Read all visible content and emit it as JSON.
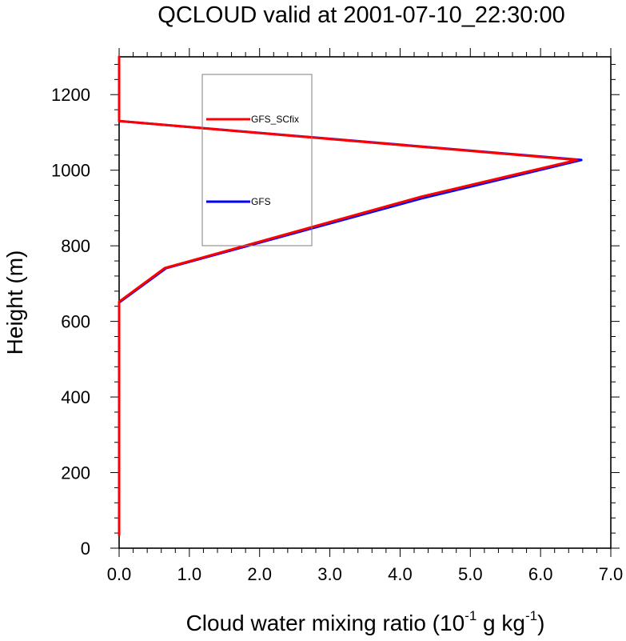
{
  "chart_data": {
    "type": "line",
    "title": "QCLOUD valid at 2001-07-10_22:30:00",
    "xlabel": {
      "base": "Cloud water mixing ratio (10",
      "exp1": "-1",
      "mid": " g kg",
      "exp2": "-1",
      "end": ")"
    },
    "ylabel": "Height (m)",
    "xlim": [
      0,
      7
    ],
    "ylim": [
      0,
      1300
    ],
    "x_ticks": [
      "0.0",
      "1.0",
      "2.0",
      "3.0",
      "4.0",
      "5.0",
      "6.0",
      "7.0"
    ],
    "y_ticks": [
      "0",
      "200",
      "400",
      "600",
      "800",
      "1000",
      "1200"
    ],
    "legend": {
      "placement": "upper-left",
      "entries": [
        "GFS_SCfix",
        "GFS"
      ]
    },
    "series": [
      {
        "name": "GFS",
        "color": "#0000ff",
        "points": [
          [
            0,
            35
          ],
          [
            0,
            650
          ],
          [
            0.67,
            741
          ],
          [
            4.3,
            925
          ],
          [
            6.58,
            1027
          ],
          [
            0,
            1130
          ],
          [
            0,
            1300
          ]
        ]
      },
      {
        "name": "GFS_SCfix",
        "color": "#ff0000",
        "points": [
          [
            0,
            35
          ],
          [
            0,
            652
          ],
          [
            0.65,
            741
          ],
          [
            4.3,
            930
          ],
          [
            6.52,
            1027
          ],
          [
            0,
            1130
          ],
          [
            0,
            1300
          ]
        ]
      }
    ]
  }
}
